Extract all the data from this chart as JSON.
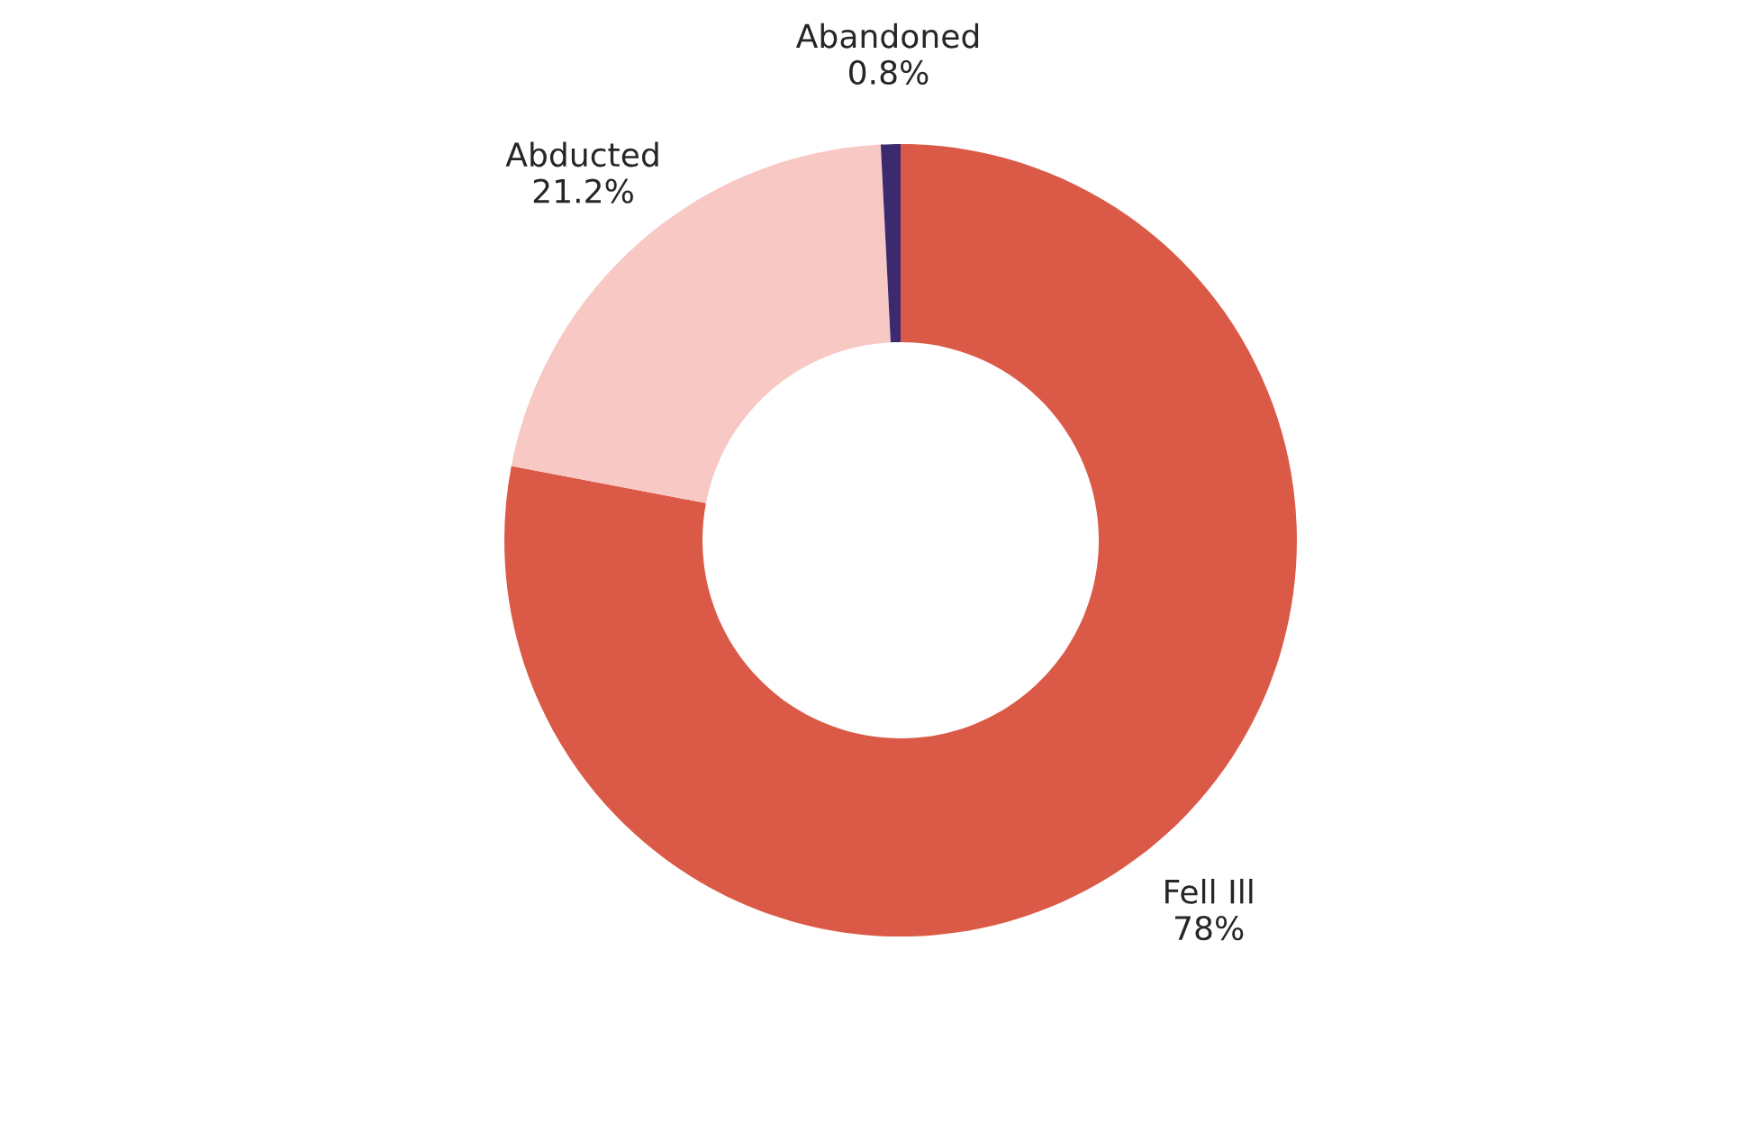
{
  "chart_data": {
    "type": "donut",
    "categories": [
      "Fell Ill",
      "Abducted",
      "Abandoned"
    ],
    "values": [
      78,
      21.2,
      0.8
    ],
    "colors": [
      "#db5a47",
      "#f8c8c4",
      "#3b2a6e"
    ],
    "value_labels": [
      "78%",
      "21.2%",
      "0.8%"
    ],
    "legend": false
  }
}
